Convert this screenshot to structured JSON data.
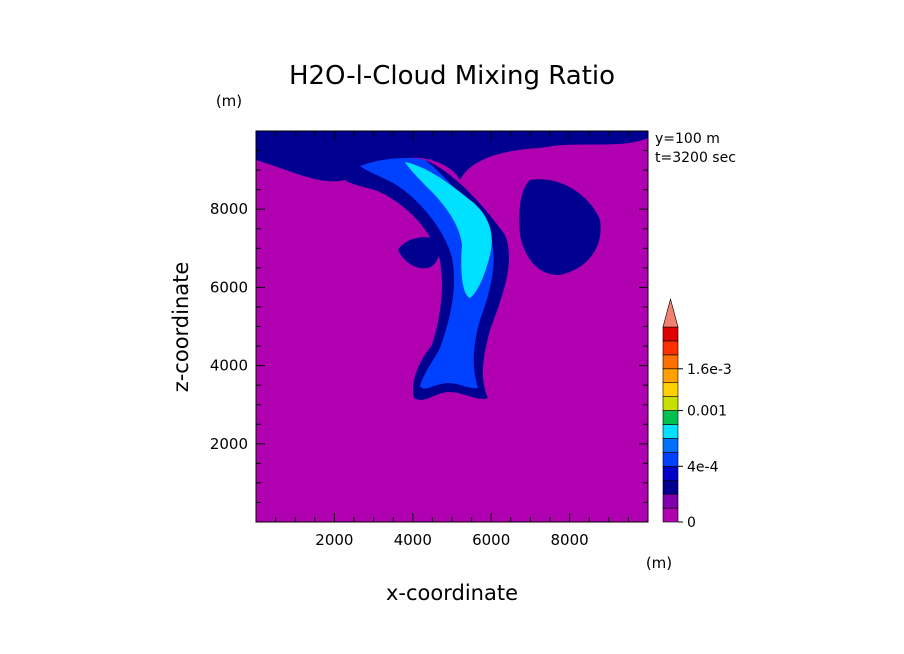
{
  "chart_data": {
    "type": "heatmap",
    "title": "H2O-l-Cloud Mixing Ratio",
    "xlabel": "x-coordinate",
    "ylabel": "z-coordinate",
    "x_unit": "(m)",
    "y_unit": "(m)",
    "xlim": [
      0,
      10000
    ],
    "ylim": [
      0,
      10000
    ],
    "x_ticks": [
      "2000",
      "4000",
      "6000",
      "8000"
    ],
    "y_ticks": [
      "2000",
      "4000",
      "6000",
      "8000"
    ],
    "x_tick_values": [
      2000,
      4000,
      6000,
      8000
    ],
    "y_tick_values": [
      2000,
      4000,
      6000,
      8000
    ],
    "annotations": [
      "y=100 m",
      "t=3200 sec"
    ],
    "colorbar": {
      "levels": [
        {
          "lower": 0,
          "color": "#b000b0"
        },
        {
          "lower": 0.0001,
          "color": "#8000b0"
        },
        {
          "lower": 0.0002,
          "color": "#000090"
        },
        {
          "lower": 0.0003,
          "color": "#0000c8"
        },
        {
          "lower": 0.0004,
          "color": "#0040ff"
        },
        {
          "lower": 0.0005,
          "color": "#0070ff"
        },
        {
          "lower": 0.0006,
          "color": "#00e0ff"
        },
        {
          "lower": 0.0008,
          "color": "#00c050"
        },
        {
          "lower": 0.001,
          "color": "#c8e000"
        },
        {
          "lower": 0.0012,
          "color": "#ffd000"
        },
        {
          "lower": 0.0014,
          "color": "#ffa000"
        },
        {
          "lower": 0.0016,
          "color": "#ff7000"
        },
        {
          "lower": 0.0018,
          "color": "#ff3000"
        },
        {
          "lower": 0.002,
          "color": "#e00000"
        }
      ],
      "extend_color": "#f08070",
      "tick_labels": [
        {
          "label": "0",
          "value": 0
        },
        {
          "label": "4e-4",
          "value": 0.0004
        },
        {
          "label": "0.001",
          "value": 0.001
        },
        {
          "label": "1.6e-3",
          "value": 0.0016
        }
      ]
    },
    "regions": [
      {
        "name": "background",
        "level": 0
      },
      {
        "name": "top-band",
        "level": 2
      },
      {
        "name": "plume-outer",
        "level": 2
      },
      {
        "name": "plume-mid",
        "level": 4
      },
      {
        "name": "plume-core",
        "level": 6
      },
      {
        "name": "right-blob",
        "level": 2
      },
      {
        "name": "left-blob",
        "level": 2
      }
    ]
  }
}
